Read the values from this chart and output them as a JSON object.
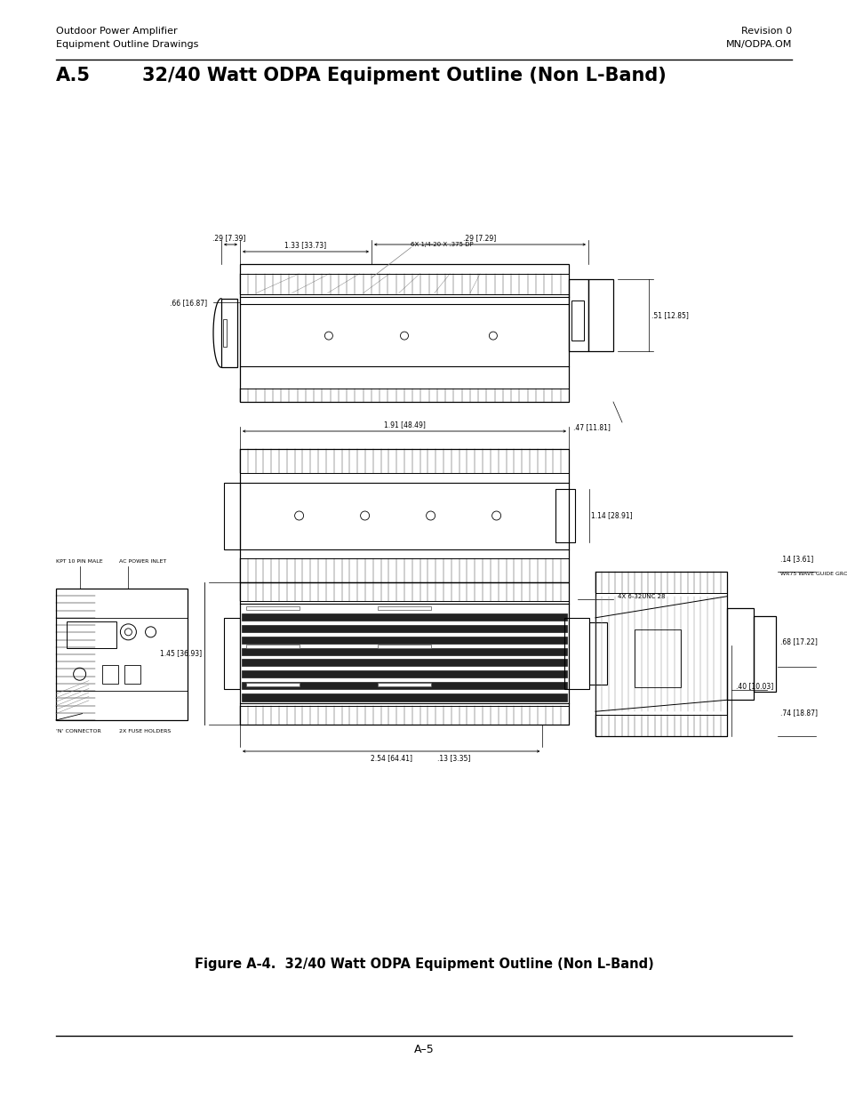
{
  "page_title_left_line1": "Outdoor Power Amplifier",
  "page_title_left_line2": "Equipment Outline Drawings",
  "page_title_right_line1": "Revision 0",
  "page_title_right_line2": "MN/ODPA.OM",
  "section_number": "A.5",
  "section_title": "32/40 Watt ODPA Equipment Outline (Non L-Band)",
  "figure_caption": "Figure A-4.  32/40 Watt ODPA Equipment Outline (Non L-Band)",
  "page_number": "A–5",
  "background_color": "#ffffff",
  "text_color": "#000000",
  "header_fontsize": 8.0,
  "section_num_fontsize": 15,
  "section_title_fontsize": 15,
  "caption_fontsize": 10.5,
  "page_num_fontsize": 9
}
